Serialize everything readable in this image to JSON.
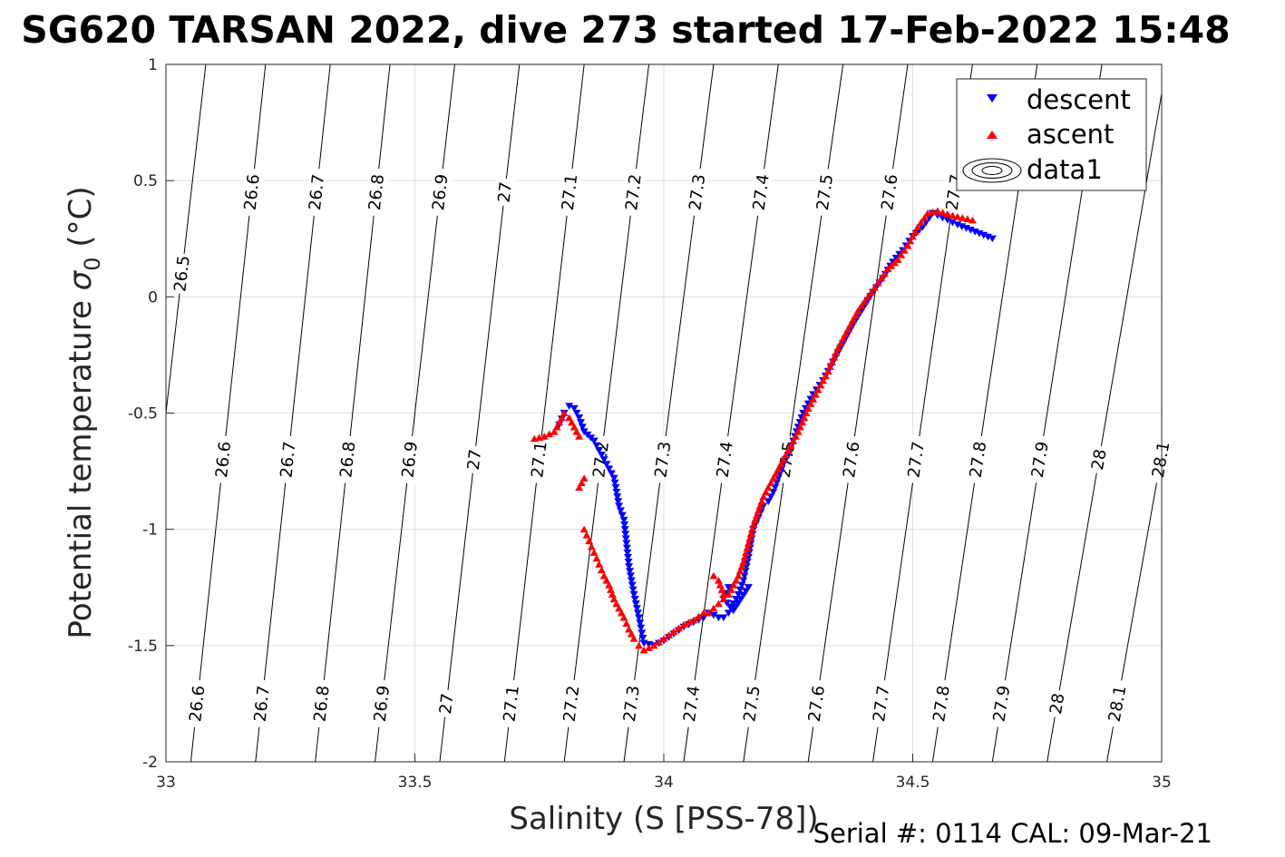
{
  "chart_data": {
    "type": "scatter",
    "title": "SG620 TARSAN 2022, dive 273 started 17-Feb-2022 15:48",
    "xlabel": "Salinity (S [PSS-78])",
    "ylabel": "Potential temperature σ₀ (°C)",
    "ylabel_main": "Potential temperature ",
    "ylabel_sigma": "σ",
    "ylabel_sub": "0",
    "ylabel_unit": " (°C)",
    "caption": "Serial #: 0114  CAL: 09-Mar-21",
    "xlim": [
      33,
      35
    ],
    "ylim": [
      -2,
      1
    ],
    "x_ticks": [
      "33",
      "33.5",
      "34",
      "34.5",
      "35"
    ],
    "y_ticks": [
      "1",
      "0.5",
      "0",
      "-0.5",
      "-1",
      "-1.5",
      "-2"
    ],
    "grid": true,
    "legend_position": "top-right",
    "legend": [
      "descent",
      "ascent",
      "data1"
    ],
    "colors": {
      "descent": "#0000ff",
      "ascent": "#ff0000",
      "contour": "#000000",
      "grid": "#e0e0e0"
    },
    "isopycnals": {
      "levels": [
        "26.5",
        "26.6",
        "26.7",
        "26.8",
        "26.9",
        "27",
        "27.1",
        "27.2",
        "27.3",
        "27.4",
        "27.5",
        "27.6",
        "27.7",
        "27.8",
        "27.9",
        "28",
        "28.1"
      ],
      "salinity_at_temp_minus2": [
        32.92,
        33.05,
        33.18,
        33.3,
        33.42,
        33.55,
        33.68,
        33.8,
        33.92,
        34.04,
        34.16,
        34.29,
        34.42,
        34.54,
        34.66,
        34.77,
        34.89
      ],
      "salinity_at_temp_1": [
        33.08,
        33.2,
        33.33,
        33.45,
        33.58,
        33.71,
        33.84,
        33.97,
        34.1,
        34.23,
        34.36,
        34.49,
        34.62,
        34.75,
        34.88,
        35.01,
        35.14
      ],
      "label_rows_temp": [
        0.45,
        -0.7,
        -1.75
      ],
      "label_rows": [
        [
          "26.6",
          "26.7",
          "26.8",
          "26.9",
          "27",
          "27.1",
          "27.2",
          "27.3",
          "27.4",
          "27.5",
          "27.6",
          "27.7"
        ],
        [
          "26.6",
          "26.7",
          "26.8",
          "26.9",
          "27",
          "27.1",
          "27.2",
          "27.3",
          "27.4",
          "27.5",
          "27.6",
          "27.7",
          "27.8",
          "27.9",
          "28",
          "28.1"
        ],
        [
          "26.6",
          "26.7",
          "26.8",
          "26.9",
          "27",
          "27.1",
          "27.2",
          "27.3",
          "27.4",
          "27.5",
          "27.6",
          "27.7",
          "27.8",
          "27.9",
          "28",
          "28.1"
        ]
      ],
      "side_label": {
        "level": "26.5",
        "temp": 0.1
      }
    },
    "series": [
      {
        "name": "descent",
        "marker": "down-triangle",
        "x": [
          34.66,
          34.59,
          34.56,
          34.54,
          34.52,
          34.5,
          34.48,
          34.46,
          34.44,
          34.42,
          34.4,
          34.38,
          34.36,
          34.34,
          34.32,
          34.3,
          34.28,
          34.27,
          34.26,
          34.25,
          34.24,
          34.23,
          34.22,
          34.21,
          34.2,
          34.19,
          34.18,
          34.17,
          34.16,
          34.15,
          34.14,
          34.13,
          34.12,
          34.11,
          34.1,
          34.09,
          34.08,
          34.06,
          34.04,
          34.02,
          34.0,
          33.98,
          33.96,
          33.95,
          33.94,
          33.93,
          33.92,
          33.91,
          33.9,
          33.88,
          33.86,
          33.84,
          33.83,
          33.82,
          33.81,
          33.8,
          33.79,
          34.13,
          34.12,
          34.14,
          34.17
        ],
        "y": [
          0.25,
          0.31,
          0.34,
          0.36,
          0.3,
          0.26,
          0.2,
          0.15,
          0.08,
          0.02,
          -0.05,
          -0.12,
          -0.2,
          -0.28,
          -0.36,
          -0.42,
          -0.5,
          -0.56,
          -0.62,
          -0.68,
          -0.72,
          -0.78,
          -0.84,
          -0.88,
          -0.9,
          -0.95,
          -1.0,
          -1.12,
          -1.22,
          -1.28,
          -1.32,
          -1.36,
          -1.38,
          -1.38,
          -1.37,
          -1.36,
          -1.38,
          -1.4,
          -1.42,
          -1.45,
          -1.48,
          -1.5,
          -1.49,
          -1.38,
          -1.28,
          -1.16,
          -0.96,
          -0.9,
          -0.78,
          -0.7,
          -0.62,
          -0.58,
          -0.52,
          -0.48,
          -0.47,
          -0.5,
          -0.55,
          -1.25,
          -1.3,
          -1.35,
          -1.25
        ]
      },
      {
        "name": "ascent",
        "marker": "up-triangle",
        "x": [
          34.62,
          34.58,
          34.55,
          34.53,
          34.51,
          34.49,
          34.47,
          34.45,
          34.43,
          34.41,
          34.39,
          34.37,
          34.35,
          34.33,
          34.31,
          34.29,
          34.27,
          34.25,
          34.23,
          34.21,
          34.2,
          34.19,
          34.18,
          34.17,
          34.16,
          34.15,
          34.14,
          34.13,
          34.12,
          34.11,
          34.1,
          34.09,
          34.08,
          34.06,
          34.04,
          34.02,
          34.0,
          33.98,
          33.96,
          33.95,
          33.94,
          33.93,
          33.92,
          33.91,
          33.9,
          33.89,
          33.88,
          33.87,
          33.86,
          33.85,
          33.84,
          33.83,
          33.82,
          33.81,
          33.8,
          33.79,
          33.78,
          33.76,
          33.74,
          34.1,
          34.11,
          34.12,
          33.84,
          33.83
        ],
        "y": [
          0.33,
          0.35,
          0.37,
          0.36,
          0.3,
          0.22,
          0.16,
          0.12,
          0.06,
          0.0,
          -0.06,
          -0.14,
          -0.22,
          -0.32,
          -0.4,
          -0.48,
          -0.58,
          -0.66,
          -0.74,
          -0.82,
          -0.86,
          -0.92,
          -0.98,
          -1.06,
          -1.14,
          -1.2,
          -1.24,
          -1.28,
          -1.3,
          -1.32,
          -1.34,
          -1.36,
          -1.36,
          -1.39,
          -1.41,
          -1.44,
          -1.47,
          -1.5,
          -1.52,
          -1.5,
          -1.47,
          -1.43,
          -1.38,
          -1.34,
          -1.3,
          -1.24,
          -1.2,
          -1.15,
          -1.1,
          -1.05,
          -1.0,
          -0.6,
          -0.56,
          -0.52,
          -0.5,
          -0.54,
          -0.58,
          -0.6,
          -0.61,
          -1.2,
          -1.22,
          -1.28,
          -0.78,
          -0.82
        ]
      }
    ]
  }
}
